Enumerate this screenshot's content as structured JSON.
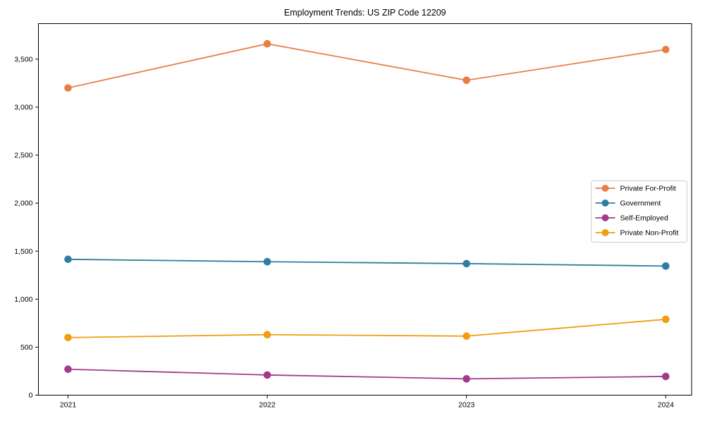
{
  "chart_data": {
    "type": "line",
    "title": "Employment Trends: US ZIP Code 12209",
    "xlabel": "",
    "ylabel": "",
    "x": [
      "2021",
      "2022",
      "2023",
      "2024"
    ],
    "series": [
      {
        "name": "Private For-Profit",
        "color": "#e87e46",
        "values": [
          3200,
          3660,
          3280,
          3600
        ]
      },
      {
        "name": "Government",
        "color": "#2d7ea0",
        "values": [
          1415,
          1390,
          1370,
          1345
        ]
      },
      {
        "name": "Self-Employed",
        "color": "#a33a8a",
        "values": [
          270,
          210,
          170,
          195
        ]
      },
      {
        "name": "Private Non-Profit",
        "color": "#f29c10",
        "values": [
          600,
          630,
          615,
          790
        ]
      }
    ],
    "yticks": {
      "values": [
        0,
        500,
        1000,
        1500,
        2000,
        2500,
        3000,
        3500
      ],
      "labels": [
        "0",
        "500",
        "1,000",
        "1,500",
        "2,000",
        "2,500",
        "3,000",
        "3,500"
      ]
    },
    "ylim": [
      0,
      3870
    ],
    "grid": false,
    "marker": "circle",
    "legend_position": "right",
    "frame_color": "#000000",
    "background_color": "#ffffff",
    "legend_border_color": "#cccccc"
  }
}
